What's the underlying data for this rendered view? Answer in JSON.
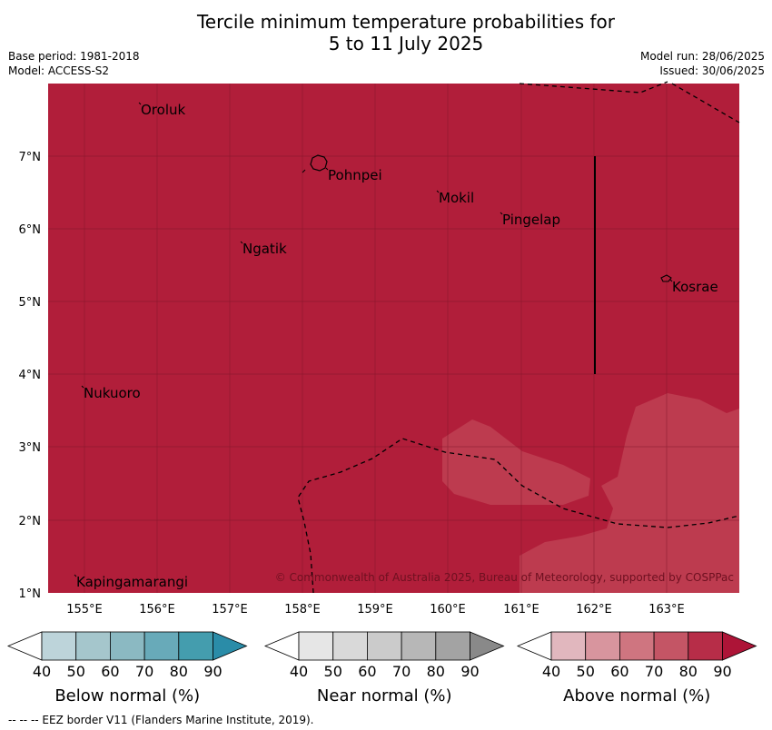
{
  "header": {
    "title_line1": "Tercile minimum temperature probabilities for",
    "title_line2": "5 to 11 July 2025",
    "base_period": "Base period: 1981-2018",
    "model": "Model: ACCESS-S2",
    "model_run": "Model run: 28/06/2025",
    "issued": "Issued: 30/06/2025"
  },
  "map": {
    "background_color": "#b11e3a",
    "patch_color": "#bd3b4f",
    "copyright": "© Commonwealth of Australia 2025, Bureau of Meteorology, supported by COSPPac",
    "lon_labels": [
      "155°E",
      "156°E",
      "157°E",
      "158°E",
      "159°E",
      "160°E",
      "161°E",
      "162°E",
      "163°E"
    ],
    "lat_labels": [
      "7°N",
      "6°N",
      "5°N",
      "4°N",
      "3°N",
      "2°N",
      "1°N"
    ],
    "places": [
      {
        "name": "Oroluk"
      },
      {
        "name": "Pohnpei"
      },
      {
        "name": "Mokil"
      },
      {
        "name": "Pingelap"
      },
      {
        "name": "Ngatik"
      },
      {
        "name": "Kosrae"
      },
      {
        "name": "Nukuoro"
      },
      {
        "name": "Kapingamarangi"
      }
    ]
  },
  "legends": [
    {
      "label": "Below normal (%)",
      "ticks": [
        "40",
        "50",
        "60",
        "70",
        "80",
        "90"
      ],
      "colors": [
        "#ffffff",
        "#bdd4da",
        "#a5c6cc",
        "#8bb9c2",
        "#68aab9",
        "#449dae",
        "#2a8ca8"
      ]
    },
    {
      "label": "Near normal (%)",
      "ticks": [
        "40",
        "50",
        "60",
        "70",
        "80",
        "90"
      ],
      "colors": [
        "#ffffff",
        "#e6e6e6",
        "#d9d9d9",
        "#cbcbcb",
        "#b7b7b7",
        "#a3a3a3",
        "#898989"
      ]
    },
    {
      "label": "Above normal (%)",
      "ticks": [
        "40",
        "50",
        "60",
        "70",
        "80",
        "90"
      ],
      "colors": [
        "#ffffff",
        "#e1b7be",
        "#d8959e",
        "#cf7580",
        "#c45565",
        "#b72d48",
        "#ad1437"
      ]
    }
  ],
  "footer": "--  --  -- EEZ border V11 (Flanders Marine Institute, 2019)."
}
